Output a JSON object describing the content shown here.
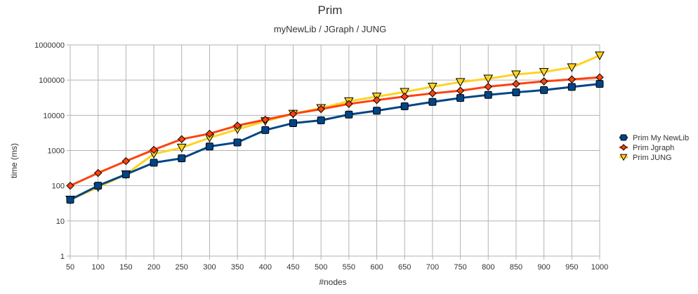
{
  "chart_data": {
    "type": "line",
    "title": "Prim",
    "subtitle": "myNewLib / JGraph / JUNG",
    "xlabel": "#nodes",
    "ylabel": "time (ms)",
    "y_scale": "log",
    "ylim": [
      1,
      1000000
    ],
    "y_ticks": [
      "1",
      "10",
      "100",
      "1000",
      "10000",
      "100000",
      "1000000"
    ],
    "grid": "vertical and horizontal",
    "legend_position": "right",
    "categories": [
      "50",
      "100",
      "150",
      "200",
      "250",
      "300",
      "350",
      "400",
      "450",
      "500",
      "550",
      "600",
      "650",
      "700",
      "750",
      "800",
      "850",
      "900",
      "950",
      "1000"
    ],
    "series": [
      {
        "name": "Prim  My NewLib",
        "color": "#004586",
        "marker": "square",
        "values": [
          40,
          100,
          210,
          450,
          600,
          1300,
          1700,
          3800,
          6000,
          7200,
          10500,
          13500,
          18000,
          24000,
          31000,
          38000,
          45000,
          52000,
          64000,
          78000
        ]
      },
      {
        "name": "Prim  Jgraph",
        "color": "#ff420e",
        "marker": "diamond",
        "values": [
          100,
          230,
          500,
          1050,
          2100,
          3000,
          5100,
          7500,
          11000,
          15000,
          21000,
          27000,
          34000,
          42000,
          50000,
          65000,
          78000,
          92000,
          105000,
          120000
        ]
      },
      {
        "name": "Prim  JUNG",
        "color": "#ffd320",
        "marker": "triangle-down",
        "values": [
          40,
          90,
          210,
          800,
          1200,
          2300,
          4000,
          6800,
          11000,
          16000,
          25000,
          34000,
          46000,
          65000,
          88000,
          110000,
          145000,
          170000,
          230000,
          500000
        ]
      }
    ]
  }
}
